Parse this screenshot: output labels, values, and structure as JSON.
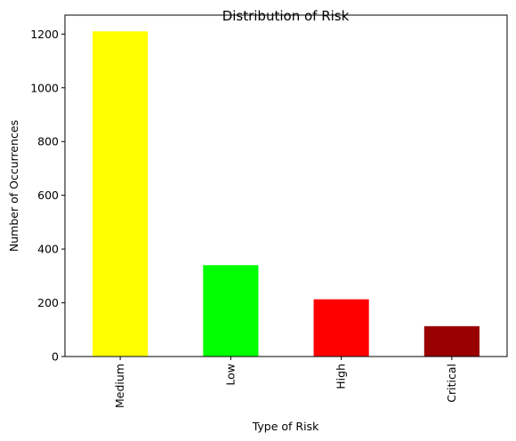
{
  "chart_data": {
    "type": "bar",
    "title": "Distribution of Risk",
    "xlabel": "Type of Risk",
    "ylabel": "Number of Occurrences",
    "categories": [
      "Medium",
      "Low",
      "High",
      "Critical"
    ],
    "values": [
      1210,
      340,
      213,
      113
    ],
    "colors": [
      "#ffff00",
      "#00ff00",
      "#ff0000",
      "#990000"
    ],
    "ylim": [
      0,
      1270.5
    ],
    "yticks": [
      0,
      200,
      400,
      600,
      800,
      1000,
      1200
    ],
    "ytick_labels": [
      "0",
      "200",
      "400",
      "600",
      "800",
      "1000",
      "1200"
    ],
    "grid": false,
    "legend": false
  }
}
